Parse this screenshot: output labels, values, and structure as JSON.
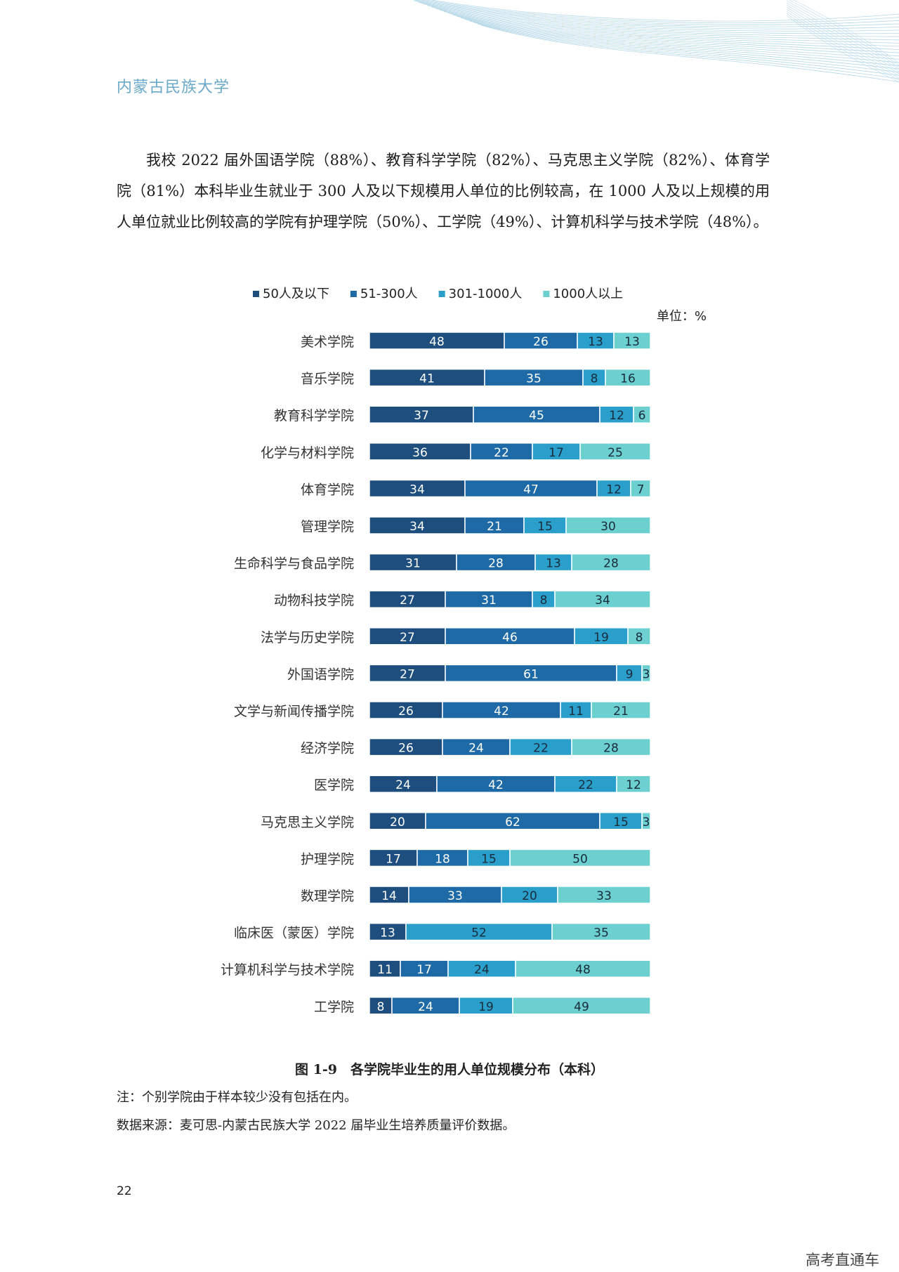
{
  "header": {
    "title": "内蒙古民族大学"
  },
  "body_text": "我校 2022 届外国语学院（88%）、教育科学学院（82%）、马克思主义学院（82%）、体育学院（81%）本科毕业生就业于 300 人及以下规模用人单位的比例较高，在 1000 人及以上规模的用人单位就业比例较高的学院有护理学院（50%）、工学院（49%）、计算机科学与技术学院（48%）。",
  "chart_data": {
    "type": "bar",
    "orientation": "horizontal",
    "stacked": true,
    "unit_label": "单位：%",
    "legend_position": "top",
    "categories": [
      "美术学院",
      "音乐学院",
      "教育科学学院",
      "化学与材料学院",
      "体育学院",
      "管理学院",
      "生命科学与食品学院",
      "动物科技学院",
      "法学与历史学院",
      "外国语学院",
      "文学与新闻传播学院",
      "经济学院",
      "医学院",
      "马克思主义学院",
      "护理学院",
      "数理学院",
      "临床医（蒙医）学院",
      "计算机科学与技术学院",
      "工学院"
    ],
    "series": [
      {
        "name": "50人及以下",
        "color": "#1d4e7e",
        "values": [
          48,
          41,
          37,
          36,
          34,
          34,
          31,
          27,
          27,
          27,
          26,
          26,
          24,
          20,
          17,
          14,
          13,
          11,
          8
        ]
      },
      {
        "name": "51-300人",
        "color": "#1e6aa6",
        "values": [
          26,
          35,
          45,
          22,
          47,
          21,
          28,
          31,
          46,
          61,
          42,
          24,
          42,
          62,
          18,
          33,
          null,
          17,
          24
        ]
      },
      {
        "name": "301-1000人",
        "color": "#2b9fcc",
        "values": [
          13,
          8,
          12,
          17,
          12,
          15,
          13,
          8,
          19,
          9,
          11,
          22,
          22,
          15,
          15,
          20,
          52,
          24,
          19
        ]
      },
      {
        "name": "1000人以上",
        "color": "#6ccfd0",
        "values": [
          13,
          16,
          6,
          25,
          7,
          30,
          28,
          34,
          8,
          3,
          21,
          28,
          12,
          3,
          50,
          33,
          35,
          48,
          49
        ]
      }
    ],
    "caption": "图 1-9　各学院毕业生的用人单位规模分布（本科）"
  },
  "notes": {
    "note": "注：个别学院由于样本较少没有包括在内。",
    "source": "数据来源：麦可思-内蒙古民族大学 2022 届毕业生培养质量评价数据。"
  },
  "footer": {
    "page_number": "22",
    "watermark": "高考直通车"
  }
}
